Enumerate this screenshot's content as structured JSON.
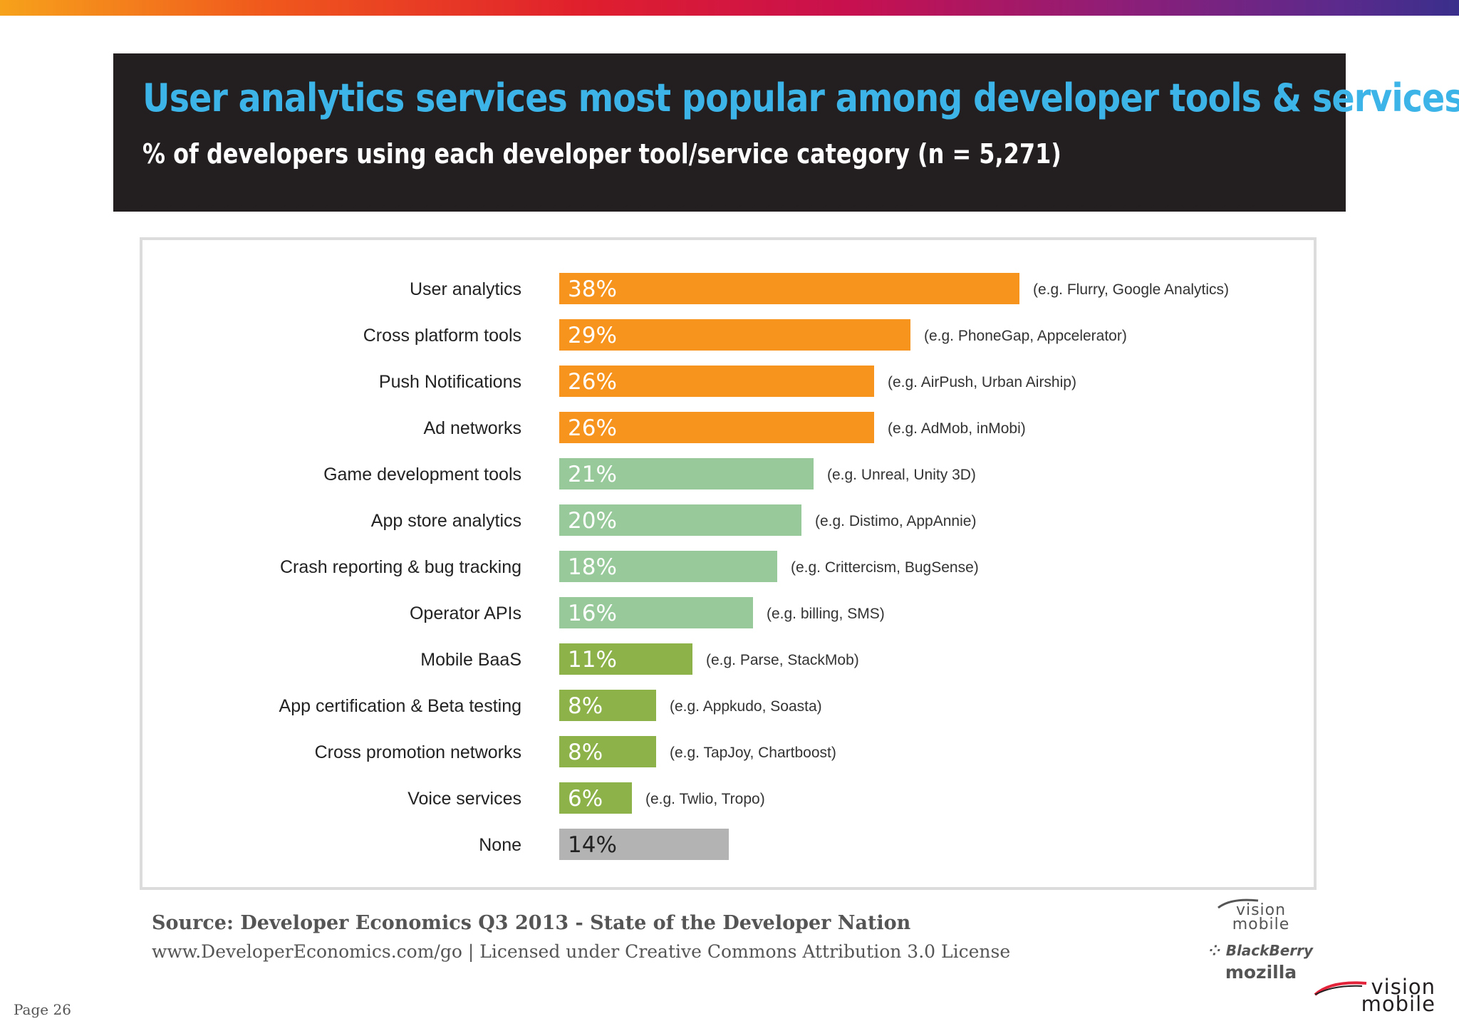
{
  "header": {
    "title": "User analytics services most popular among developer tools & services",
    "subtitle": "% of developers using each developer tool/service category (n = 5,271)"
  },
  "chart_data": {
    "type": "bar",
    "orientation": "horizontal",
    "title": "User analytics services most popular among developer tools & services",
    "subtitle": "% of developers using each developer tool/service category (n = 5,271)",
    "xlim": [
      0,
      38
    ],
    "unit": "%",
    "grid": false,
    "legend": "none",
    "categories": [
      "User analytics",
      "Cross platform tools",
      "Push Notifications",
      "Ad networks",
      "Game development tools",
      "App store analytics",
      "Crash reporting & bug tracking",
      "Operator APIs",
      "Mobile BaaS",
      "App certification & Beta testing",
      "Cross promotion networks",
      "Voice services",
      "None"
    ],
    "values": [
      38,
      29,
      26,
      26,
      21,
      20,
      18,
      16,
      11,
      8,
      8,
      6,
      14
    ],
    "value_labels": [
      "38%",
      "29%",
      "26%",
      "26%",
      "21%",
      "20%",
      "18%",
      "16%",
      "11%",
      "8%",
      "8%",
      "6%",
      "14%"
    ],
    "examples": [
      "(e.g. Flurry, Google Analytics)",
      "(e.g. PhoneGap, Appcelerator)",
      "(e.g. AirPush, Urban Airship)",
      "(e.g. AdMob, inMobi)",
      "(e.g. Unreal, Unity 3D)",
      "(e.g. Distimo, AppAnnie)",
      "(e.g. Crittercism, BugSense)",
      "(e.g. billing, SMS)",
      "(e.g. Parse, StackMob)",
      "(e.g. Appkudo, Soasta)",
      "(e.g. TapJoy, Chartboost)",
      "(e.g. Twlio, Tropo)",
      ""
    ],
    "bar_colors": [
      "#f7941d",
      "#f7941d",
      "#f7941d",
      "#f7941d",
      "#98c99a",
      "#98c99a",
      "#98c99a",
      "#98c99a",
      "#8db249",
      "#8db249",
      "#8db249",
      "#8db249",
      "#b3b3b3"
    ],
    "value_label_colors": [
      "#ffffff",
      "#ffffff",
      "#ffffff",
      "#ffffff",
      "#ffffff",
      "#ffffff",
      "#ffffff",
      "#ffffff",
      "#ffffff",
      "#ffffff",
      "#ffffff",
      "#ffffff",
      "#222222"
    ]
  },
  "footer": {
    "source": "Source: Developer Economics Q3 2013 - State of the Developer Nation",
    "license": "www.DeveloperEconomics.com/go | Licensed under Creative Commons Attribution 3.0 License",
    "page": "Page 26"
  },
  "logos": {
    "vision_mobile": "vision mobile",
    "vision_mobile_line1": "vision",
    "vision_mobile_line2": "mobile",
    "blackberry": "BlackBerry",
    "mozilla": "mozilla"
  },
  "colors": {
    "header_bg": "#231f20",
    "title": "#3db4e8",
    "subtitle": "#ffffff"
  }
}
